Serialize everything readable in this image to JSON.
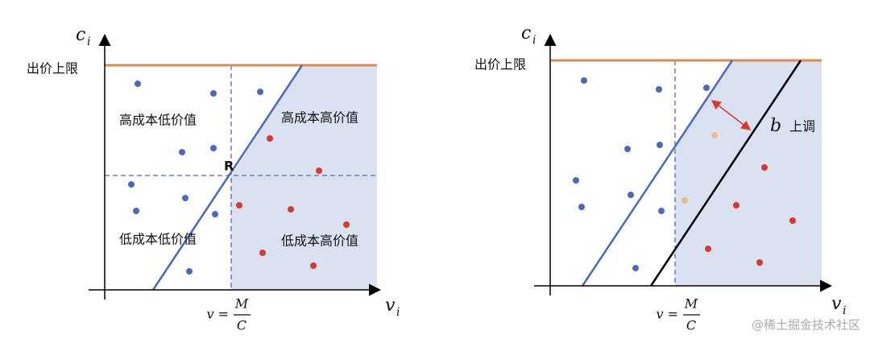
{
  "left": {
    "y_axis": {
      "symbol": "c",
      "subscript": "i"
    },
    "cap_label": "出价上限",
    "quadrants": [
      "高成本低价值",
      "高成本高价值",
      "低成本低价值",
      "低成本高价值"
    ],
    "point_label": "R",
    "x_axis": {
      "symbol": "v",
      "subscript": "i"
    },
    "threshold": {
      "lhs": "v =",
      "numerator": "M",
      "denominator": "C"
    }
  },
  "right": {
    "y_axis": {
      "symbol": "c",
      "subscript": "i"
    },
    "cap_label": "出价上限",
    "shift": {
      "symbol": "b",
      "label": "上调"
    },
    "x_axis": {
      "symbol": "v",
      "subscript": "i"
    },
    "threshold": {
      "lhs": "v =",
      "numerator": "M",
      "denominator": "C"
    }
  },
  "watermark": "@稀土掘金技术社区"
}
